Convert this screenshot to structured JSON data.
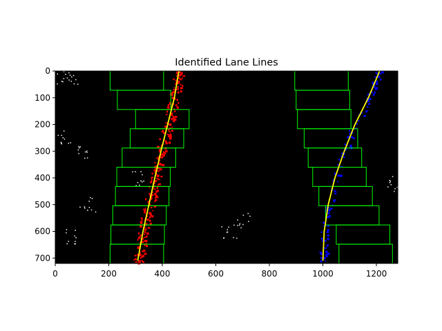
{
  "chart_data": {
    "type": "image-plot",
    "title": "Identified Lane Lines",
    "xlabel": "",
    "ylabel": "",
    "xlim": [
      0,
      1280
    ],
    "ylim": [
      720,
      0
    ],
    "xticks": [
      0,
      200,
      400,
      600,
      800,
      1000,
      1200
    ],
    "yticks": [
      0,
      100,
      200,
      300,
      400,
      500,
      600,
      700
    ],
    "colors": {
      "background": "#000000",
      "left_lane_pixels": "#ff0000",
      "right_lane_pixels": "#0000ff",
      "windows": "#00ff00",
      "fit": "#ffff00",
      "noise": "#ffffff"
    },
    "windows": {
      "left": [
        {
          "x1": 205,
          "x2": 405,
          "y1": 0,
          "y2": 72
        },
        {
          "x1": 232,
          "x2": 432,
          "y1": 72,
          "y2": 144
        },
        {
          "x1": 300,
          "x2": 500,
          "y1": 144,
          "y2": 216
        },
        {
          "x1": 280,
          "x2": 480,
          "y1": 216,
          "y2": 288
        },
        {
          "x1": 250,
          "x2": 450,
          "y1": 288,
          "y2": 360
        },
        {
          "x1": 230,
          "x2": 430,
          "y1": 360,
          "y2": 432
        },
        {
          "x1": 225,
          "x2": 425,
          "y1": 432,
          "y2": 504
        },
        {
          "x1": 215,
          "x2": 415,
          "y1": 504,
          "y2": 576
        },
        {
          "x1": 208,
          "x2": 408,
          "y1": 576,
          "y2": 648
        },
        {
          "x1": 205,
          "x2": 405,
          "y1": 648,
          "y2": 720
        }
      ],
      "right": [
        {
          "x1": 895,
          "x2": 1095,
          "y1": 0,
          "y2": 72
        },
        {
          "x1": 900,
          "x2": 1100,
          "y1": 72,
          "y2": 144
        },
        {
          "x1": 905,
          "x2": 1105,
          "y1": 144,
          "y2": 216
        },
        {
          "x1": 930,
          "x2": 1130,
          "y1": 216,
          "y2": 288
        },
        {
          "x1": 945,
          "x2": 1145,
          "y1": 288,
          "y2": 360
        },
        {
          "x1": 962,
          "x2": 1162,
          "y1": 360,
          "y2": 432
        },
        {
          "x1": 985,
          "x2": 1185,
          "y1": 432,
          "y2": 504
        },
        {
          "x1": 1010,
          "x2": 1210,
          "y1": 504,
          "y2": 576
        },
        {
          "x1": 1050,
          "x2": 1250,
          "y1": 576,
          "y2": 648
        },
        {
          "x1": 1060,
          "x2": 1260,
          "y1": 648,
          "y2": 720
        }
      ]
    },
    "fits": {
      "left": [
        {
          "x": 462,
          "y": 0
        },
        {
          "x": 445,
          "y": 100
        },
        {
          "x": 420,
          "y": 200
        },
        {
          "x": 395,
          "y": 300
        },
        {
          "x": 372,
          "y": 400
        },
        {
          "x": 350,
          "y": 500
        },
        {
          "x": 328,
          "y": 600
        },
        {
          "x": 308,
          "y": 710
        }
      ],
      "right": [
        {
          "x": 1212,
          "y": 0
        },
        {
          "x": 1170,
          "y": 100
        },
        {
          "x": 1120,
          "y": 200
        },
        {
          "x": 1080,
          "y": 300
        },
        {
          "x": 1045,
          "y": 400
        },
        {
          "x": 1020,
          "y": 500
        },
        {
          "x": 1005,
          "y": 600
        },
        {
          "x": 1000,
          "y": 710
        }
      ]
    }
  }
}
